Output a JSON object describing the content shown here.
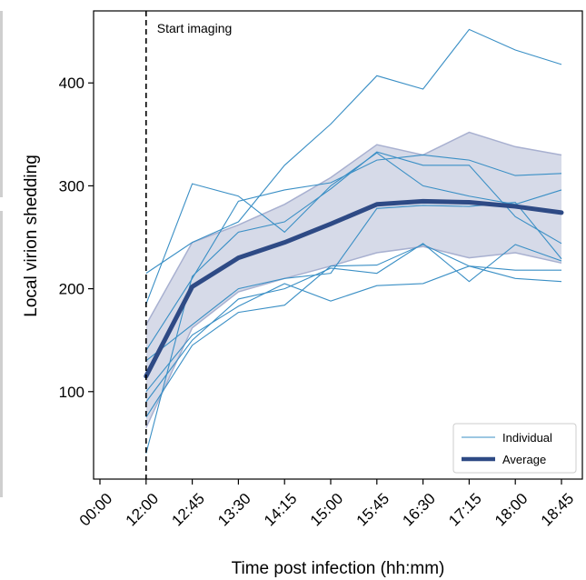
{
  "chart_data": {
    "type": "line",
    "title": "",
    "xlabel": "Time post infection (hh:mm)",
    "ylabel": "Local virion shedding",
    "x_tick_labels": [
      "00:00",
      "12:00",
      "12:45",
      "13:30",
      "14:15",
      "15:00",
      "15:45",
      "16:30",
      "17:15",
      "18:00",
      "18:45"
    ],
    "x": [
      "12:00",
      "12:45",
      "13:30",
      "14:15",
      "15:00",
      "15:45",
      "16:30",
      "17:15",
      "18:00",
      "18:45"
    ],
    "yticks": [
      100,
      200,
      300,
      400
    ],
    "ylim": [
      15,
      470
    ],
    "grid": false,
    "annotation": {
      "text": "Start imaging",
      "x": "12:00",
      "line_style": "dashed"
    },
    "legend": {
      "placement": "bottom-right",
      "entries": [
        "Individual",
        "Average"
      ]
    },
    "colors": {
      "individual": "#3a8fc5",
      "average": "#2e4a85",
      "band": "#c8cde0",
      "band_edge": "#a8b0d0"
    },
    "individual_series": [
      [
        215,
        245,
        265,
        320,
        360,
        407,
        394,
        452,
        432,
        418
      ],
      [
        185,
        302,
        290,
        255,
        300,
        332,
        300,
        290,
        282,
        296
      ],
      [
        140,
        210,
        285,
        296,
        303,
        325,
        330,
        325,
        310,
        312
      ],
      [
        100,
        155,
        183,
        205,
        188,
        203,
        205,
        222,
        218,
        218
      ],
      [
        90,
        150,
        190,
        200,
        220,
        215,
        244,
        207,
        243,
        227
      ],
      [
        75,
        145,
        177,
        184,
        222,
        223,
        243,
        222,
        210,
        207
      ],
      [
        40,
        212,
        255,
        265,
        297,
        333,
        320,
        320,
        270,
        244
      ],
      [
        130,
        165,
        200,
        210,
        215,
        278,
        281,
        280,
        284,
        229
      ]
    ],
    "average_series": {
      "name": "Average",
      "values": [
        115,
        202,
        230,
        245,
        263,
        282,
        285,
        284,
        280,
        274
      ]
    },
    "band_upper": [
      165,
      245,
      262,
      282,
      308,
      340,
      330,
      352,
      338,
      330
    ],
    "band_lower": [
      65,
      162,
      197,
      210,
      222,
      235,
      241,
      230,
      235,
      225
    ]
  }
}
